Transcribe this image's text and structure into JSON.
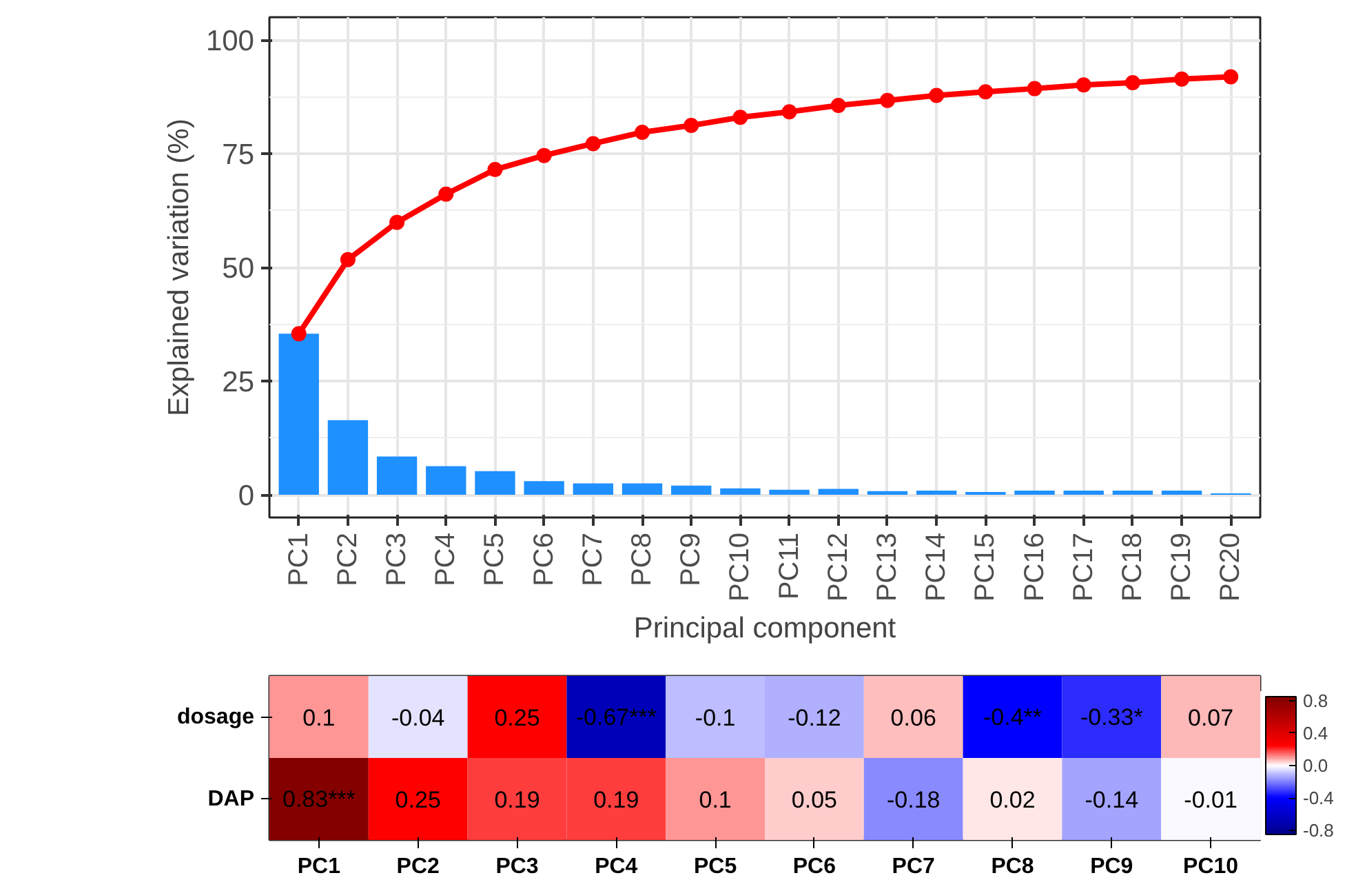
{
  "chart_data": [
    {
      "type": "bar",
      "xlabel": "Principal component",
      "ylabel": "Explained variation (%)",
      "categories": [
        "PC1",
        "PC2",
        "PC3",
        "PC4",
        "PC5",
        "PC6",
        "PC7",
        "PC8",
        "PC9",
        "PC10",
        "PC11",
        "PC12",
        "PC13",
        "PC14",
        "PC15",
        "PC16",
        "PC17",
        "PC18",
        "PC19",
        "PC20"
      ],
      "series": [
        {
          "type": "bar",
          "color": "#1e90ff",
          "values": [
            35.4,
            16.4,
            8.4,
            6.3,
            5.2,
            3.0,
            2.5,
            2.5,
            2.0,
            1.4,
            1.1,
            1.3,
            0.8,
            0.9,
            0.6,
            0.9,
            0.9,
            0.9,
            0.9,
            0.3
          ]
        },
        {
          "type": "line",
          "color": "#ff0000",
          "marker": "circle",
          "values": [
            35.4,
            51.7,
            59.9,
            66.1,
            71.5,
            74.6,
            77.2,
            79.7,
            81.2,
            83.0,
            84.2,
            85.6,
            86.7,
            87.8,
            88.6,
            89.3,
            90.1,
            90.6,
            91.4,
            91.9
          ]
        }
      ],
      "ylim": [
        -5,
        105
      ],
      "yticks": [
        0,
        25,
        50,
        75,
        100
      ],
      "grid": true
    },
    {
      "type": "heatmap",
      "categories": [
        "PC1",
        "PC2",
        "PC3",
        "PC4",
        "PC5",
        "PC6",
        "PC7",
        "PC8",
        "PC9",
        "PC10"
      ],
      "y_categories": [
        "dosage",
        "DAP"
      ],
      "cells": [
        [
          0.1,
          -0.04,
          0.25,
          -0.67,
          -0.1,
          -0.12,
          0.06,
          -0.4,
          -0.33,
          0.07
        ],
        [
          0.83,
          0.25,
          0.19,
          0.19,
          0.1,
          0.05,
          -0.18,
          0.02,
          -0.14,
          -0.01
        ]
      ],
      "cell_labels": [
        [
          "0.1",
          "-0.04",
          "0.25",
          "-0.67***",
          "-0.1",
          "-0.12",
          "0.06",
          "-0.4**",
          "-0.33*",
          "0.07"
        ],
        [
          "0.83***",
          "0.25",
          "0.19",
          "0.19",
          "0.1",
          "0.05",
          "-0.18",
          "0.02",
          "-0.14",
          "-0.01"
        ]
      ],
      "clim": [
        -0.85,
        0.85
      ],
      "cticks": [
        {
          "value": 0.8,
          "label": "0.8"
        },
        {
          "value": 0.4,
          "label": "0.4"
        },
        {
          "value": 0,
          "label": "0.0"
        },
        {
          "value": -0.4,
          "label": "-0.4"
        },
        {
          "value": -0.8,
          "label": "-0.8"
        }
      ]
    }
  ]
}
